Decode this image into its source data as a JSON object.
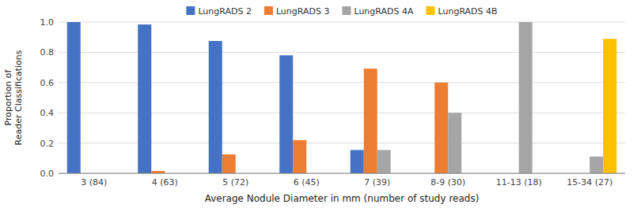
{
  "chart_data": {
    "type": "bar",
    "xlabel": "Average Nodule Diameter in mm (number of study reads)",
    "ylabel": "Proportion of\nReader Classifications",
    "categories": [
      "3 (84)",
      "4 (63)",
      "5 (72)",
      "6 (45)",
      "7 (39)",
      "8-9 (30)",
      "11-13 (18)",
      "15-34 (27)"
    ],
    "series": [
      {
        "name": "LungRADS 2",
        "color": "#4472C4",
        "values": [
          1.0,
          0.984,
          0.875,
          0.78,
          0.154,
          0.0,
          0.0,
          0.0
        ]
      },
      {
        "name": "LungRADS 3",
        "color": "#ED7D31",
        "values": [
          0.0,
          0.016,
          0.125,
          0.22,
          0.692,
          0.6,
          0.0,
          0.0
        ]
      },
      {
        "name": "LungRADS 4A",
        "color": "#A5A5A5",
        "values": [
          0.0,
          0.0,
          0.0,
          0.0,
          0.154,
          0.4,
          1.0,
          0.111
        ]
      },
      {
        "name": "LungRADS 4B",
        "color": "#FFC000",
        "values": [
          0.0,
          0.0,
          0.0,
          0.0,
          0.0,
          0.0,
          0.0,
          0.889
        ]
      }
    ],
    "ylim": [
      0,
      1.0
    ],
    "yticks": [
      {
        "value": 0.0,
        "label": "0.0"
      },
      {
        "value": 0.2,
        "label": "0.2"
      },
      {
        "value": 0.4,
        "label": "0.4"
      },
      {
        "value": 0.6,
        "label": "0.6"
      },
      {
        "value": 0.8,
        "label": "0.8"
      },
      {
        "value": 1.0,
        "label": "1.0"
      }
    ],
    "grid": true,
    "legend": "top"
  }
}
